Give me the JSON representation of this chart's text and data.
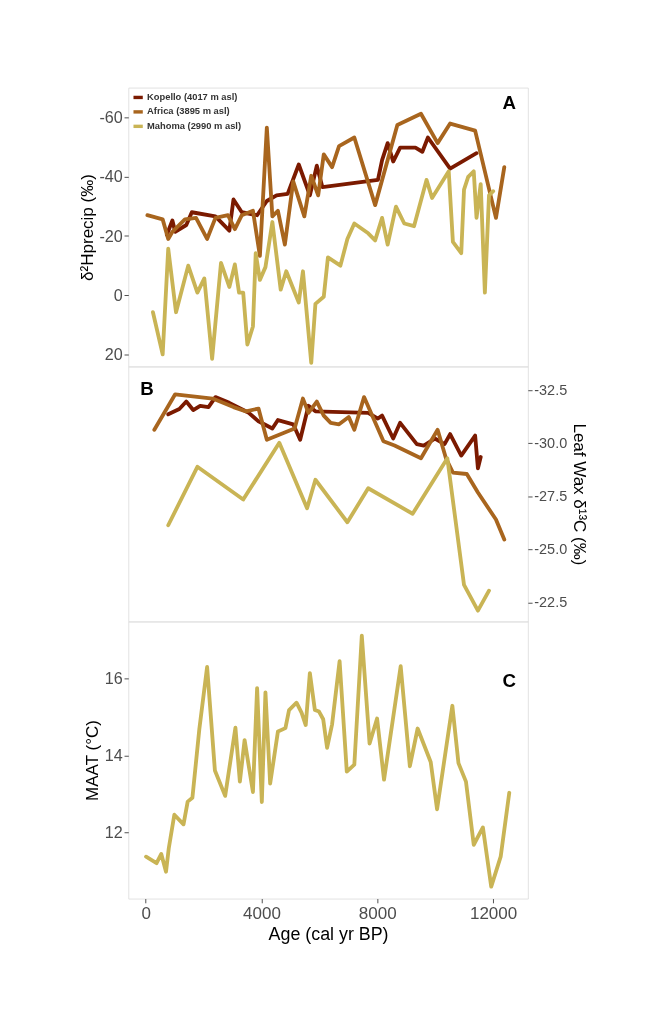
{
  "chart_data": [
    {
      "type": "line",
      "ylabel": "δ²Hprecip (‰)",
      "annotations": [
        "A"
      ],
      "xlim": [
        -600,
        13200
      ],
      "ylim": [
        24,
        -70
      ],
      "yticks": [
        -60,
        -40,
        -20,
        0,
        20
      ],
      "tick_labels": "y",
      "grid": false,
      "legend": "top left",
      "line_style": "solid",
      "series": [
        {
          "name": "Kopello (4017 m asl)",
          "color": "#7b1a00",
          "x": [
            729,
            921,
            1017,
            1401,
            1592,
            2408,
            2888,
            3031,
            3319,
            3847,
            4183,
            4518,
            4902,
            5286,
            5670,
            5909,
            6101,
            8020,
            8164,
            8356,
            8547,
            8787,
            9315,
            9555,
            9747,
            10514,
            11426
          ],
          "values": [
            -20.4,
            -25.2,
            -21.4,
            -23.7,
            -28.0,
            -26.6,
            -21.8,
            -32.3,
            -28.0,
            -27.0,
            -31.8,
            -33.7,
            -34.2,
            -44.1,
            -33.7,
            -43.7,
            -36.5,
            -38.9,
            -45.6,
            -51.3,
            -45.1,
            -49.8,
            -49.8,
            -48.4,
            -53.2,
            -42.7,
            -47.9
          ]
        },
        {
          "name": "Africa (3895 m asl)",
          "color": "#a8651e",
          "x": [
            57,
            585,
            777,
            921,
            1353,
            1737,
            2120,
            2408,
            2840,
            3079,
            3319,
            3703,
            3943,
            4183,
            4374,
            4566,
            4806,
            5094,
            5478,
            5717,
            5957,
            6149,
            6437,
            6677,
            7205,
            7924,
            8691,
            9507,
            10082,
            10514,
            11378,
            12097,
            12385
          ],
          "values": [
            -27.0,
            -25.6,
            -19.0,
            -21.4,
            -25.6,
            -26.1,
            -19.0,
            -26.1,
            -27.0,
            -22.3,
            -27.0,
            -28.5,
            -13.3,
            -56.5,
            -26.6,
            -28.5,
            -17.1,
            -38.4,
            -26.6,
            -40.3,
            -33.7,
            -47.5,
            -43.2,
            -50.3,
            -53.2,
            -30.4,
            -57.4,
            -61.2,
            -51.3,
            -57.9,
            -55.5,
            -26.1,
            -43.2
          ]
        },
        {
          "name": "Mahoma (2990 m asl)",
          "color": "#c9b455",
          "x": [
            249,
            585,
            777,
            1046,
            1468,
            1784,
            2024,
            2293,
            2600,
            2888,
            3079,
            3223,
            3367,
            3511,
            3703,
            3799,
            3943,
            4135,
            4374,
            4662,
            4854,
            5286,
            5430,
            5717,
            5861,
            6149,
            6293,
            6725,
            6965,
            7205,
            7684,
            7924,
            8164,
            8356,
            8643,
            8931,
            9267,
            9699,
            9890,
            10466,
            10610,
            10898,
            10994,
            11138,
            11330,
            11426,
            11570,
            11714,
            11857,
            12001
          ],
          "values": [
            5.7,
            19.9,
            -15.7,
            5.7,
            -10.0,
            -0.9,
            -5.7,
            21.4,
            -10.9,
            -2.8,
            -10.4,
            -0.9,
            -0.9,
            16.6,
            10.5,
            -14.2,
            -5.2,
            -9.5,
            -24.7,
            -1.9,
            -8.1,
            2.4,
            -8.1,
            22.8,
            2.9,
            0.5,
            -12.8,
            -10.0,
            -19.0,
            -24.2,
            -20.9,
            -18.5,
            -26.1,
            -17.1,
            -29.9,
            -24.2,
            -23.3,
            -38.9,
            -32.8,
            -41.8,
            -18.0,
            -14.2,
            -35.6,
            -39.9,
            -41.8,
            -26.1,
            -37.5,
            -0.9,
            -33.7,
            -35.1
          ]
        }
      ]
    },
    {
      "type": "line",
      "y2label": "Leaf Wax δ¹³C (‰)",
      "annotations": [
        "B"
      ],
      "xlim": [
        -600,
        13200
      ],
      "y2lim": [
        -21.6,
        -33.6
      ],
      "y2ticks": [
        -32.5,
        {
          "value": -30,
          "label": "-30.0"
        },
        -27.5,
        {
          "value": -25,
          "label": "-25.0"
        },
        -22.5
      ],
      "tick_labels": "y2",
      "grid": false,
      "line_style": "solid",
      "series": [
        {
          "color": "#7b1a00",
          "axis": "y2",
          "x": [
            777,
            1161,
            1401,
            1640,
            1880,
            2168,
            2408,
            2888,
            3559,
            3895,
            4374,
            4566,
            5094,
            5334,
            5621,
            5861,
            7684,
            8020,
            8164,
            8547,
            8787,
            9363,
            9603,
            9986,
            10322,
            10514,
            10898,
            11378,
            11474,
            11570
          ],
          "values": [
            -31.35,
            -31.6,
            -31.95,
            -31.55,
            -31.75,
            -31.69,
            -32.16,
            -31.89,
            -31.42,
            -31.02,
            -30.68,
            -31.08,
            -30.88,
            -30.15,
            -31.75,
            -31.49,
            -31.42,
            -31.15,
            -31.29,
            -30.21,
            -30.95,
            -29.95,
            -29.88,
            -30.21,
            -29.95,
            -30.42,
            -29.41,
            -30.35,
            -28.81,
            -29.34
          ]
        },
        {
          "color": "#a8651e",
          "axis": "y2",
          "x": [
            297,
            1017,
            2312,
            3031,
            3463,
            3895,
            4183,
            5142,
            5430,
            5621,
            5909,
            6149,
            6389,
            6677,
            7013,
            7205,
            7541,
            8211,
            8595,
            9507,
            10082,
            10370,
            10610,
            11090,
            11474,
            12097,
            12385
          ],
          "values": [
            -30.62,
            -32.29,
            -32.09,
            -31.69,
            -31.49,
            -31.62,
            -30.15,
            -30.68,
            -32.09,
            -31.42,
            -31.95,
            -31.29,
            -30.95,
            -30.88,
            -31.22,
            -30.62,
            -32.16,
            -30.08,
            -29.88,
            -29.28,
            -30.62,
            -29.28,
            -28.61,
            -28.54,
            -27.67,
            -26.4,
            -25.46
          ]
        },
        {
          "color": "#c9b455",
          "axis": "y2",
          "x": [
            777,
            1784,
            3367,
            4614,
            5573,
            5861,
            6965,
            7684,
            9219,
            10418,
            10994,
            11474,
            11857
          ],
          "values": [
            -26.13,
            -28.88,
            -27.34,
            -30.01,
            -26.93,
            -28.27,
            -26.27,
            -27.87,
            -26.67,
            -29.28,
            -23.32,
            -22.11,
            -23.05
          ]
        }
      ]
    },
    {
      "type": "line",
      "xlabel": "Age (cal yr BP)",
      "ylabel": "MAAT (°C)",
      "annotations": [
        "C"
      ],
      "xlim": [
        -600,
        13200
      ],
      "xticks": [
        0,
        4000,
        8000,
        12000
      ],
      "ylim": [
        10.28,
        17.48
      ],
      "yticks": [
        12,
        14,
        16
      ],
      "grid": false,
      "line_style": "solid",
      "series": [
        {
          "color": "#c9b455",
          "x": [
            10,
            374,
            537,
            700,
            796,
            988,
            1305,
            1449,
            1612,
            1851,
            2120,
            2389,
            2744,
            3098,
            3252,
            3415,
            3703,
            3847,
            4010,
            4135,
            4298,
            4566,
            4825,
            4950,
            5209,
            5382,
            5526,
            5669,
            5842,
            5986,
            6130,
            6264,
            6437,
            6696,
            6945,
            7205,
            7463,
            7732,
            7991,
            8231,
            8806,
            9123,
            9392,
            9843,
            10063,
            10591,
            10802,
            11061,
            11330,
            11646,
            11934,
            12260,
            12557
          ],
          "values": [
            11.37,
            11.2,
            11.44,
            10.98,
            11.59,
            12.46,
            12.21,
            12.8,
            12.9,
            14.68,
            16.3,
            13.61,
            12.95,
            14.72,
            13.32,
            14.4,
            13.05,
            15.75,
            12.79,
            15.64,
            13.27,
            14.62,
            14.71,
            15.18,
            15.37,
            15.11,
            14.79,
            16.14,
            15.18,
            15.14,
            14.94,
            14.2,
            14.81,
            16.45,
            13.58,
            13.76,
            17.11,
            14.31,
            14.96,
            13.37,
            16.32,
            13.72,
            14.7,
            13.83,
            12.6,
            15.29,
            13.8,
            13.32,
            11.68,
            12.13,
            10.59,
            11.37,
            13.03
          ]
        }
      ]
    }
  ]
}
